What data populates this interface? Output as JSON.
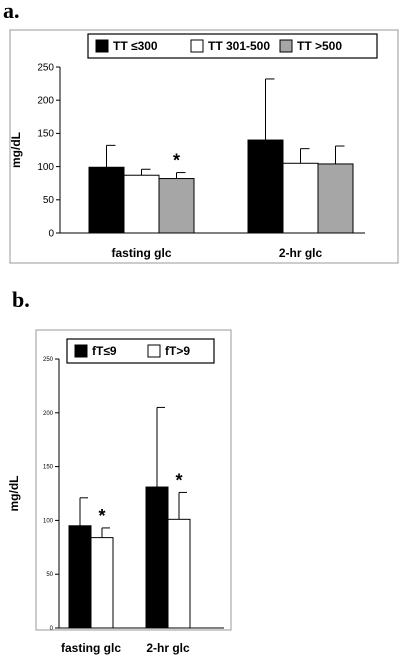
{
  "panels": {
    "a": {
      "label": "a."
    },
    "b": {
      "label": "b."
    }
  },
  "colors": {
    "black": "#000000",
    "white": "#ffffff",
    "gray": "#a6a6a6"
  },
  "chart_data": [
    {
      "type": "bar",
      "panel": "a.",
      "ylabel": "mg/dL",
      "ylim": [
        0,
        250
      ],
      "yticks": [
        0,
        50,
        100,
        150,
        200,
        250
      ],
      "categories": [
        "fasting glc",
        "2-hr glc"
      ],
      "series": [
        {
          "name": "TT ≤300",
          "color": "#000000",
          "values": [
            99,
            140
          ],
          "error": [
            33,
            92
          ]
        },
        {
          "name": "TT 301-500",
          "color": "#ffffff",
          "values": [
            87,
            105
          ],
          "error": [
            9,
            22
          ]
        },
        {
          "name": "TT >500",
          "color": "#a6a6a6",
          "values": [
            82,
            104
          ],
          "error": [
            9,
            27
          ]
        }
      ],
      "annotations": [
        {
          "text": "*",
          "category": "fasting glc",
          "series": "TT >500"
        }
      ],
      "legend": "top"
    },
    {
      "type": "bar",
      "panel": "b.",
      "ylabel": "mg/dL",
      "ylim": [
        0,
        250
      ],
      "yticks": [
        0,
        50,
        100,
        150,
        200,
        250
      ],
      "categories": [
        "fasting glc",
        "2-hr glc"
      ],
      "series": [
        {
          "name": "fT≤9",
          "color": "#000000",
          "values": [
            95,
            131
          ],
          "error": [
            26,
            74
          ]
        },
        {
          "name": "fT>9",
          "color": "#ffffff",
          "values": [
            84,
            101
          ],
          "error": [
            9,
            25
          ]
        }
      ],
      "annotations": [
        {
          "text": "*",
          "category": "fasting glc",
          "series": "fT>9"
        },
        {
          "text": "*",
          "category": "2-hr glc",
          "series": "fT>9"
        }
      ],
      "legend": "top"
    }
  ]
}
